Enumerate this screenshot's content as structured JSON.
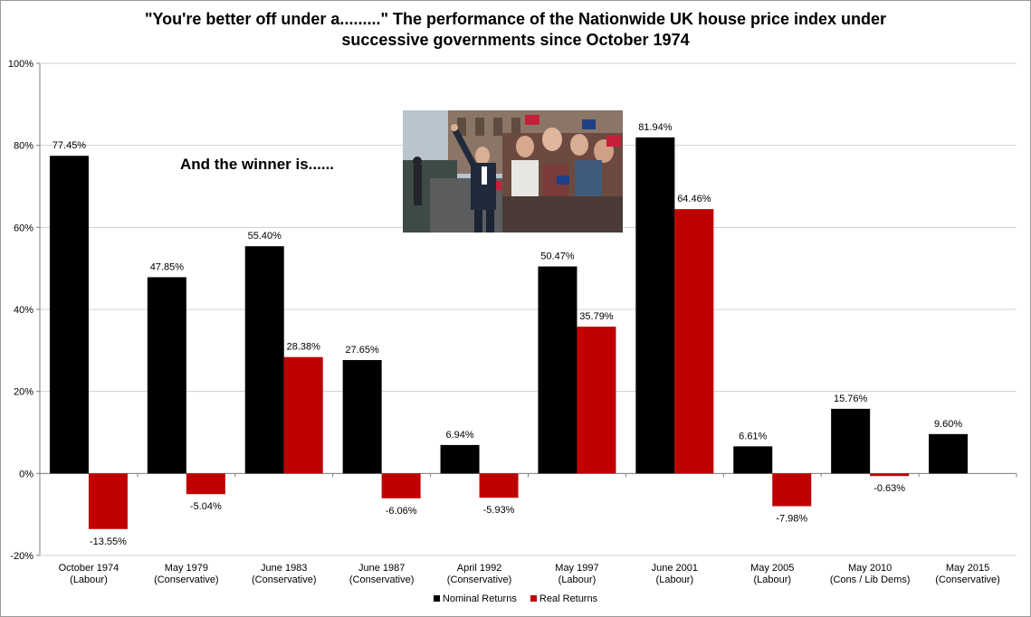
{
  "chart_data": {
    "type": "bar",
    "title_line1": "\"You're better off under a.........\" The performance of the Nationwide UK house price index under",
    "title_line2": "successive governments since October 1974",
    "annotation": "And the winner is......",
    "categories": [
      [
        "October 1974",
        "(Labour)"
      ],
      [
        "May 1979",
        "(Conservative)"
      ],
      [
        "June 1983",
        "(Conservative)"
      ],
      [
        "June 1987",
        "(Conservative)"
      ],
      [
        "April 1992",
        "(Conservative)"
      ],
      [
        "May 1997",
        "(Labour)"
      ],
      [
        "June 2001",
        "(Labour)"
      ],
      [
        "May 2005",
        "(Labour)"
      ],
      [
        "May 2010",
        "(Cons / Lib Dems)"
      ],
      [
        "May 2015",
        "(Conservative)"
      ]
    ],
    "series": [
      {
        "name": "Nominal Returns",
        "color": "#000000",
        "values": [
          77.45,
          47.85,
          55.4,
          27.65,
          6.94,
          50.47,
          81.94,
          6.61,
          15.76,
          9.6
        ],
        "labels": [
          "77.45%",
          "47.85%",
          "55.40%",
          "27.65%",
          "6.94%",
          "50.47%",
          "81.94%",
          "6.61%",
          "15.76%",
          "9.60%"
        ]
      },
      {
        "name": "Real Returns",
        "color": "#c00000",
        "values": [
          -13.55,
          -5.04,
          28.38,
          -6.06,
          -5.93,
          35.79,
          64.46,
          -7.98,
          -0.63,
          null
        ],
        "labels": [
          "-13.55%",
          "-5.04%",
          "28.38%",
          "-6.06%",
          "-5.93%",
          "35.79%",
          "64.46%",
          "-7.98%",
          "-0.63%",
          ""
        ]
      }
    ],
    "ylim": [
      -20,
      100
    ],
    "yticks": [
      -20,
      0,
      20,
      40,
      60,
      80,
      100
    ],
    "ytick_labels": [
      "-20%",
      "0%",
      "20%",
      "40%",
      "60%",
      "80%",
      "100%"
    ],
    "grid": true,
    "legend": "bottom"
  },
  "photo": {
    "sky_color": "#b9c4cf",
    "building_color": "#8a7566",
    "crowd_color": "#6c4a3f",
    "road_color": "#5b5d5e",
    "suit_color": "#1f2a3b",
    "flag_red": "#c5203a",
    "flag_blue": "#1f3f86"
  }
}
